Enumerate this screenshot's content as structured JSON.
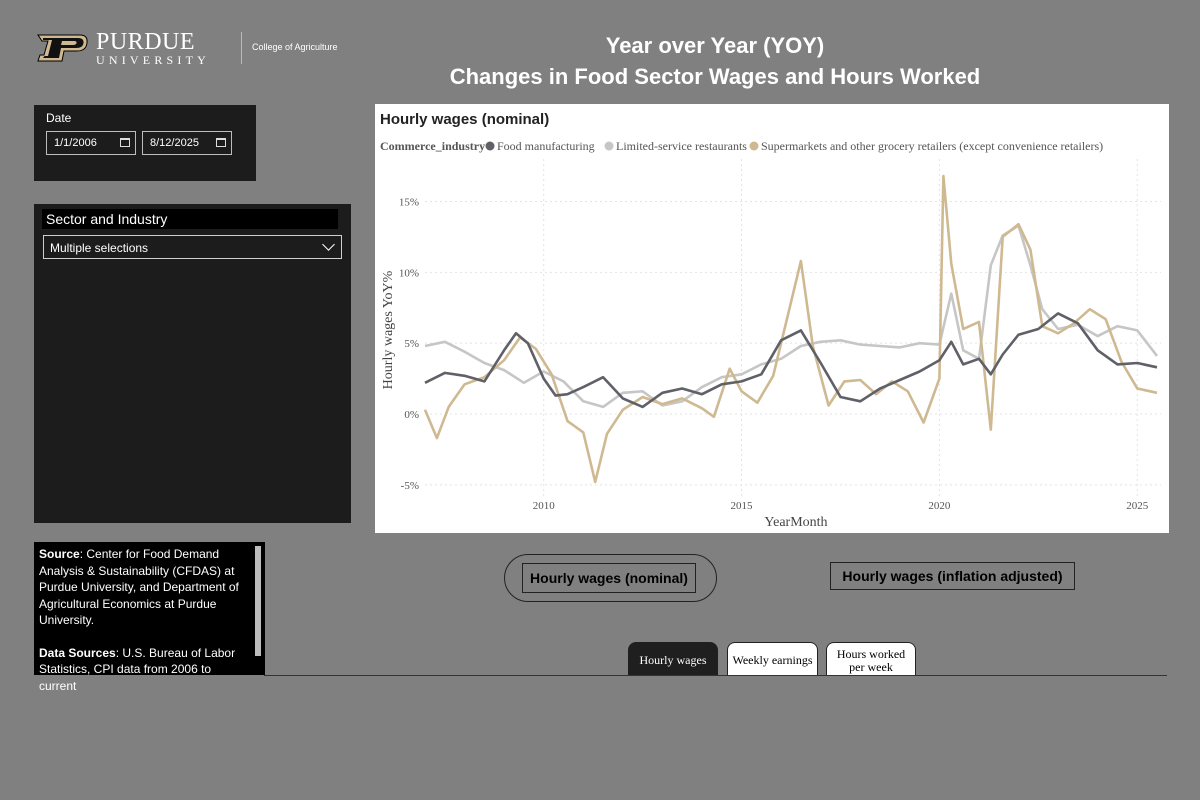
{
  "header": {
    "logo_word": "PURDUE",
    "logo_university": "UNIVERSITY",
    "logo_college": "College of Agriculture",
    "title_line1": "Year over Year (YOY)",
    "title_line2": "Changes in Food Sector Wages and Hours Worked"
  },
  "date_filter": {
    "label": "Date",
    "start": "1/1/2006",
    "end": "8/12/2025"
  },
  "sector_filter": {
    "label": "Sector and Industry",
    "selected": "Multiple selections"
  },
  "source_note": {
    "source_label": "Source",
    "source_text": ": Center for Food Demand Analysis & Sustainability (CFDAS) at Purdue University, and Department of Agricultural Economics at Purdue University.",
    "data_label": "Data Sources",
    "data_text": ": U.S. Bureau of Labor Statistics, CPI data from 2006 to current"
  },
  "measure_buttons": {
    "nominal": "Hourly wages (nominal)",
    "inflation": "Hourly wages (inflation adjusted)"
  },
  "tabs": {
    "hourly": "Hourly wages",
    "weekly": "Weekly earnings",
    "hours_line1": "Hours worked",
    "hours_line2": "per week"
  },
  "colors": {
    "food_manufacturing": "#5f6068",
    "limited_service": "#c6c6c6",
    "supermarkets": "#cfb991"
  },
  "chart_data": {
    "type": "line",
    "title": "Hourly wages (nominal)",
    "legend_title": "Commerce_industry",
    "legend_position": "top-left",
    "xlabel": "YearMonth",
    "ylabel": "Hourly wages YoY%",
    "x_ticks": [
      "2010",
      "2015",
      "2020",
      "2025"
    ],
    "y_ticks": [
      "-5%",
      "0%",
      "5%",
      "10%",
      "15%"
    ],
    "y_tick_values": [
      -5,
      0,
      5,
      10,
      15
    ],
    "xlim": [
      2007.0,
      2025.6
    ],
    "ylim": [
      -6,
      18
    ],
    "grid": true,
    "series": [
      {
        "name": "Food manufacturing",
        "x": [
          2007.0,
          2007.5,
          2008.0,
          2008.5,
          2009.0,
          2009.3,
          2009.6,
          2010.0,
          2010.3,
          2010.6,
          2011.0,
          2011.5,
          2012.0,
          2012.5,
          2013.0,
          2013.5,
          2014.0,
          2014.5,
          2015.0,
          2015.5,
          2016.0,
          2016.5,
          2017.0,
          2017.5,
          2018.0,
          2018.5,
          2019.0,
          2019.5,
          2020.0,
          2020.3,
          2020.6,
          2021.0,
          2021.3,
          2021.6,
          2022.0,
          2022.5,
          2023.0,
          2023.5,
          2024.0,
          2024.5,
          2025.0,
          2025.5
        ],
        "y": [
          2.2,
          2.9,
          2.7,
          2.3,
          4.5,
          5.7,
          5.0,
          2.5,
          1.3,
          1.4,
          1.9,
          2.6,
          1.1,
          0.5,
          1.5,
          1.8,
          1.4,
          2.1,
          2.3,
          2.8,
          5.2,
          5.9,
          3.6,
          1.2,
          0.9,
          1.8,
          2.4,
          3.0,
          3.8,
          5.1,
          3.5,
          3.9,
          2.8,
          4.2,
          5.6,
          6.0,
          7.1,
          6.4,
          4.5,
          3.5,
          3.6,
          3.3
        ]
      },
      {
        "name": "Limited-service restaurants",
        "x": [
          2007.0,
          2007.5,
          2008.0,
          2008.5,
          2009.0,
          2009.5,
          2010.0,
          2010.5,
          2011.0,
          2011.5,
          2012.0,
          2012.5,
          2013.0,
          2013.5,
          2014.0,
          2014.5,
          2015.0,
          2015.5,
          2016.0,
          2016.5,
          2017.0,
          2017.5,
          2018.0,
          2018.5,
          2019.0,
          2019.5,
          2020.0,
          2020.3,
          2020.6,
          2021.0,
          2021.3,
          2021.6,
          2022.0,
          2022.3,
          2022.6,
          2023.0,
          2023.5,
          2024.0,
          2024.5,
          2025.0,
          2025.5
        ],
        "y": [
          4.8,
          5.1,
          4.4,
          3.6,
          3.1,
          2.2,
          3.0,
          2.3,
          0.9,
          0.5,
          1.5,
          1.6,
          0.6,
          0.9,
          1.9,
          2.6,
          2.8,
          3.5,
          3.9,
          4.8,
          5.1,
          5.2,
          4.9,
          4.8,
          4.7,
          5.0,
          4.9,
          8.5,
          4.5,
          3.9,
          10.5,
          12.6,
          13.3,
          10.5,
          7.4,
          6.0,
          6.3,
          5.5,
          6.2,
          5.9,
          4.1
        ]
      },
      {
        "name": "Supermarkets and other grocery retailers (except convenience retailers)",
        "x": [
          2007.0,
          2007.3,
          2007.6,
          2008.0,
          2008.5,
          2009.0,
          2009.4,
          2009.8,
          2010.2,
          2010.6,
          2011.0,
          2011.3,
          2011.6,
          2012.0,
          2012.5,
          2013.0,
          2013.5,
          2014.0,
          2014.3,
          2014.7,
          2015.0,
          2015.4,
          2015.8,
          2016.2,
          2016.5,
          2016.8,
          2017.2,
          2017.6,
          2018.0,
          2018.4,
          2018.8,
          2019.2,
          2019.6,
          2020.0,
          2020.1,
          2020.3,
          2020.6,
          2021.0,
          2021.3,
          2021.6,
          2022.0,
          2022.3,
          2022.6,
          2023.0,
          2023.4,
          2023.8,
          2024.2,
          2024.6,
          2025.0,
          2025.5
        ],
        "y": [
          0.3,
          -1.7,
          0.5,
          2.1,
          2.6,
          3.8,
          5.4,
          4.6,
          2.8,
          -0.5,
          -1.3,
          -4.8,
          -1.4,
          0.3,
          1.2,
          0.7,
          1.1,
          0.4,
          -0.2,
          3.2,
          1.6,
          0.8,
          2.7,
          7.3,
          10.8,
          4.8,
          0.6,
          2.3,
          2.4,
          1.4,
          2.3,
          1.6,
          -0.6,
          2.5,
          16.8,
          10.6,
          6.0,
          6.5,
          -1.1,
          12.5,
          13.4,
          11.6,
          6.2,
          5.7,
          6.4,
          7.4,
          6.7,
          3.7,
          1.8,
          1.5
        ]
      }
    ]
  }
}
